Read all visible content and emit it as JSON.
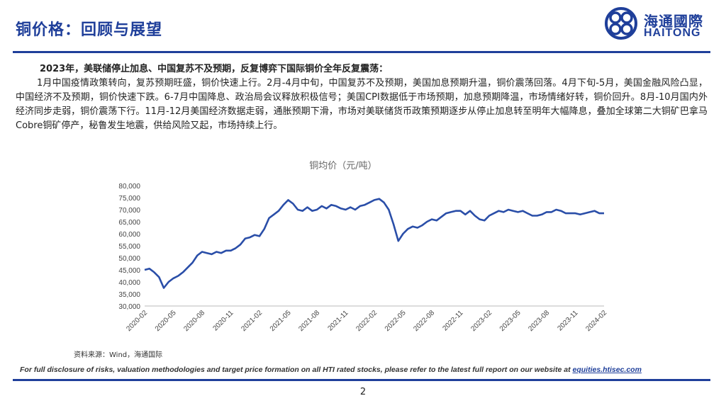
{
  "header": {
    "title": "铜价格：回顾与展望"
  },
  "logo": {
    "cn": "海通國際",
    "en": "HAITONG",
    "color": "#1f3f9a"
  },
  "body": {
    "lead": "2023年，美联储停止加息、中国复苏不及预期，反复博弈下国际铜价全年反复震荡：",
    "paragraph": "1月中国疫情政策转向，复苏预期旺盛，铜价快速上行。2月-4月中旬，中国复苏不及预期，美国加息预期升温，铜价震荡回落。4月下旬-5月，美国金融风险凸显，中国经济不及预期，铜价快速下跌。6-7月中国降息、政治局会议释放积极信号；美国CPI数据低于市场预期，加息预期降温，市场情绪好转，铜价回升。8月-10月国内外经济同步走弱，铜价震荡下行。11月-12月美国经济数据走弱，通胀预期下滑，市场对美联储货币政策预期逐步从停止加息转至明年大幅降息，叠加全球第二大铜矿巴拿马Cobre铜矿停产，秘鲁发生地震，供给风险又起，市场持续上行。"
  },
  "chart_data": {
    "type": "line",
    "title": "铜均价（元/吨）",
    "ylim": [
      30000,
      80000
    ],
    "yticks": [
      "30,000",
      "35,000",
      "40,000",
      "45,000",
      "50,000",
      "55,000",
      "60,000",
      "65,000",
      "70,000",
      "75,000",
      "80,000"
    ],
    "xticks": [
      "2020-02",
      "2020-05",
      "2020-08",
      "2020-11",
      "2021-02",
      "2021-05",
      "2021-08",
      "2021-11",
      "2022-02",
      "2022-05",
      "2022-08",
      "2022-11",
      "2023-02",
      "2023-05",
      "2023-08",
      "2023-11",
      "2024-02"
    ],
    "grid": false,
    "line_color": "#2a4ea8",
    "series": [
      {
        "x": [
          0,
          0.5,
          1,
          1.5,
          2,
          2.5,
          3,
          3.5,
          4,
          4.5,
          5,
          5.5,
          6,
          6.5,
          7,
          7.5,
          8,
          8.5,
          9,
          9.5,
          10,
          10.5,
          11,
          11.5,
          12,
          12.5,
          13,
          13.5,
          14,
          14.5,
          15,
          15.5,
          16,
          16.5,
          17,
          17.5,
          18,
          18.5,
          19,
          19.5,
          20,
          20.5,
          21,
          21.5,
          22,
          22.5,
          23,
          23.5,
          24,
          24.5,
          25,
          25.5,
          26,
          26.5,
          27,
          27.5,
          28,
          28.5,
          29,
          29.5,
          30,
          30.5,
          31,
          31.5,
          32,
          32.5,
          33,
          33.5,
          34,
          34.5,
          35,
          35.5,
          36,
          36.5,
          37,
          37.5,
          38,
          38.5,
          39,
          39.5,
          40,
          40.5,
          41,
          41.5,
          42,
          42.5,
          43,
          43.5,
          44,
          44.5,
          45,
          45.5,
          46,
          46.5,
          47,
          47.5,
          48
        ],
        "values": [
          45000,
          45500,
          44000,
          42000,
          37500,
          40000,
          41500,
          42500,
          44000,
          46000,
          48000,
          51000,
          52500,
          52000,
          51500,
          52500,
          52000,
          53000,
          53000,
          54000,
          55500,
          58000,
          58500,
          59500,
          59000,
          62000,
          66500,
          68000,
          69500,
          72000,
          74000,
          72500,
          70000,
          69500,
          71000,
          69500,
          70000,
          71500,
          70500,
          72000,
          71500,
          70500,
          70000,
          71000,
          70000,
          71500,
          72000,
          73000,
          74000,
          74500,
          73000,
          70000,
          64000,
          57000,
          60000,
          62000,
          63000,
          62500,
          63500,
          65000,
          66000,
          65500,
          67000,
          68500,
          69000,
          69500,
          69500,
          68000,
          69500,
          67500,
          66000,
          65500,
          67500,
          68500,
          69500,
          69000,
          70000,
          69500,
          69000,
          69500,
          68500,
          67500,
          67500,
          68000,
          69000,
          69000,
          70000,
          69500,
          68500,
          68500,
          68500,
          68000,
          68500,
          69000,
          69500,
          68500,
          68500
        ]
      }
    ]
  },
  "source": "资料来源：Wind，海通国际",
  "disclaimer": {
    "text": "For full disclosure of risks, valuation methodologies and target price formation on all HTI rated stocks, please refer to the latest full report on our website at ",
    "link": "equities.htisec.com"
  },
  "page_number": "2"
}
